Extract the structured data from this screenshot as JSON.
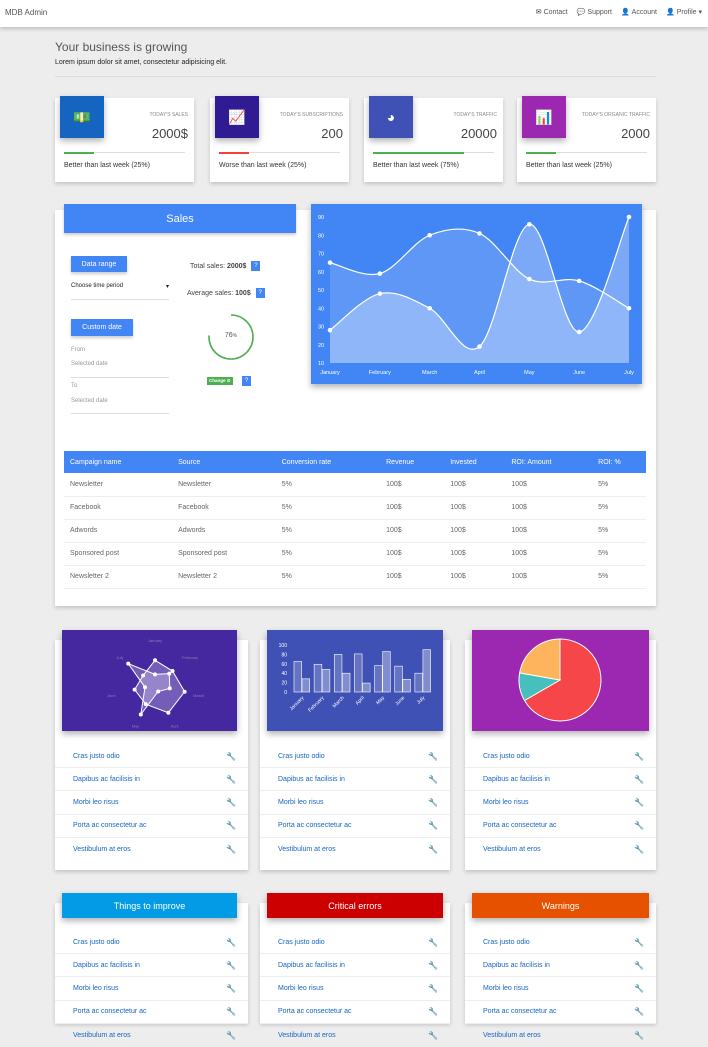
{
  "nav": {
    "brand": "MDB Admin",
    "items": [
      {
        "icon": "envelope-icon",
        "glyph": "✉",
        "label": "Contact"
      },
      {
        "icon": "comments-icon",
        "glyph": "💬",
        "label": "Support"
      },
      {
        "icon": "user-icon",
        "glyph": "👤",
        "label": "Account"
      },
      {
        "icon": "user-icon",
        "glyph": "👤",
        "label": "Profile ▾"
      }
    ]
  },
  "header": {
    "title": "Your business is growing",
    "subtitle": "Lorem ipsum dolor sit amet, consectetur adipisicing elit."
  },
  "stats": [
    {
      "icon": "money-icon",
      "glyph": "💵",
      "color": "#1565c0",
      "label": "TODAY'S SALES",
      "value": "2000$",
      "progress": 25,
      "bar_color": "#4caf50",
      "note": "Better than last week (25%)"
    },
    {
      "icon": "line-chart-icon",
      "glyph": "📈",
      "color": "#311b92",
      "label": "TODAY'S SUBSCRIPTIONS",
      "value": "200",
      "progress": 25,
      "bar_color": "#f44336",
      "note": "Worse than last week (25%)"
    },
    {
      "icon": "pie-chart-icon",
      "glyph": "◕",
      "color": "#3f51b5",
      "label": "TODAY'S TRAFFIC",
      "value": "20000",
      "progress": 75,
      "bar_color": "#4caf50",
      "note": "Better than last week (75%)"
    },
    {
      "icon": "bar-chart-icon",
      "glyph": "📊",
      "color": "#9c27b0",
      "label": "TODAY'S ORGANIC TRAFFIC",
      "value": "2000",
      "progress": 25,
      "bar_color": "#4caf50",
      "note": "Better than last week (25%)"
    }
  ],
  "sales": {
    "title": "Sales",
    "data_range": "Data range",
    "time_period": "Choose time period",
    "custom_date": "Custom date",
    "from": "From",
    "to": "To",
    "selected_date": "Selected date",
    "total_label": "Total sales:",
    "total_value": "2000$",
    "avg_label": "Average sales:",
    "avg_value": "100$",
    "percent": 76,
    "percent_label": "76",
    "percent_unit": "%",
    "change": "Change ⊙",
    "help": "?"
  },
  "chart_data": [
    {
      "type": "line",
      "categories": [
        "January",
        "February",
        "March",
        "April",
        "May",
        "June",
        "July"
      ],
      "series": [
        {
          "values": [
            65,
            59,
            80,
            81,
            56,
            55,
            40
          ]
        },
        {
          "values": [
            28,
            48,
            40,
            19,
            86,
            27,
            90
          ]
        }
      ],
      "ylim": [
        10,
        90
      ],
      "yticks": [
        10,
        20,
        30,
        40,
        50,
        60,
        70,
        80,
        90
      ],
      "grid": false,
      "color": "#4285f4"
    },
    {
      "type": "radar",
      "categories": [
        "January",
        "February",
        "March",
        "April",
        "May",
        "June",
        "July"
      ],
      "series": [
        {
          "values": [
            65,
            59,
            80,
            81,
            56,
            55,
            40
          ]
        },
        {
          "values": [
            28,
            48,
            40,
            19,
            86,
            27,
            90
          ]
        }
      ],
      "color": "#4527a0"
    },
    {
      "type": "bar",
      "categories": [
        "January",
        "February",
        "March",
        "April",
        "May",
        "June",
        "July"
      ],
      "series": [
        {
          "values": [
            65,
            59,
            80,
            81,
            56,
            55,
            40
          ]
        },
        {
          "values": [
            28,
            48,
            40,
            19,
            86,
            27,
            90
          ]
        }
      ],
      "ylim": [
        0,
        100
      ],
      "yticks": [
        0,
        20,
        40,
        60,
        80,
        100
      ],
      "color": "#3f51b5"
    },
    {
      "type": "pie",
      "values": [
        300,
        50,
        100
      ],
      "colors": [
        "#f7464a",
        "#46bfbd",
        "#fdb45c"
      ],
      "color": "#9c27b0"
    }
  ],
  "table": {
    "headers": [
      "Campaign name",
      "Source",
      "Conversion rate",
      "Revenue",
      "Invested",
      "ROI: Amount",
      "ROI: %"
    ],
    "rows": [
      [
        "Newsletter",
        "Newsletter",
        "5%",
        "100$",
        "100$",
        "100$",
        "5%"
      ],
      [
        "Facebook",
        "Facebook",
        "5%",
        "100$",
        "100$",
        "100$",
        "5%"
      ],
      [
        "Adwords",
        "Adwords",
        "5%",
        "100$",
        "100$",
        "100$",
        "5%"
      ],
      [
        "Sponsored post",
        "Sponsored post",
        "5%",
        "100$",
        "100$",
        "100$",
        "5%"
      ],
      [
        "Newsletter 2",
        "Newsletter 2",
        "5%",
        "100$",
        "100$",
        "100$",
        "5%"
      ]
    ]
  },
  "list_items": [
    "Cras justo odio",
    "Dapibus ac facilisis in",
    "Morbi leo risus",
    "Porta ac consectetur ac",
    "Vestibulum at eros"
  ],
  "panels": [
    {
      "title": "Things to improve",
      "color": "#039be5"
    },
    {
      "title": "Critical errors",
      "color": "#cc0000"
    },
    {
      "title": "Warnings",
      "color": "#e65100"
    }
  ]
}
